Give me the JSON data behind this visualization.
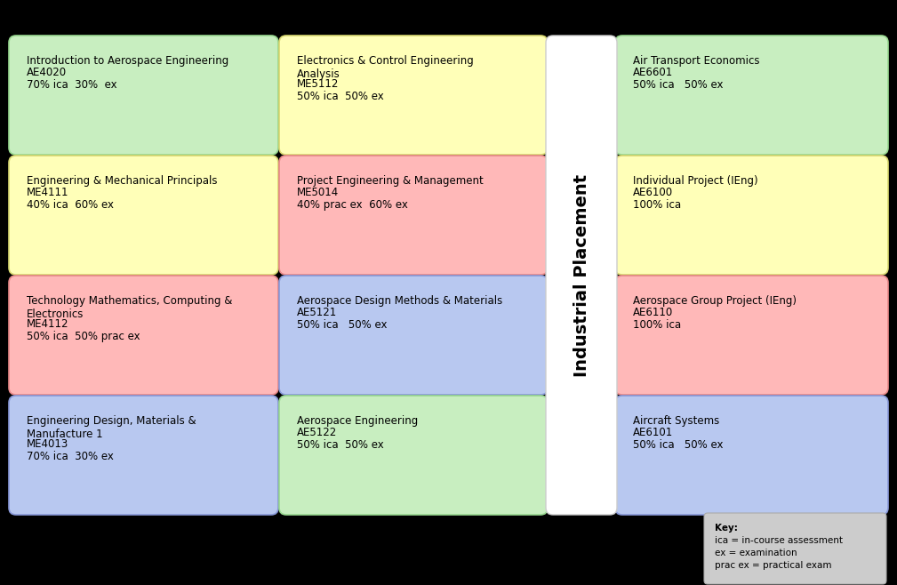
{
  "background_color": "#000000",
  "box_text_color": "#000000",
  "title_font_size": 8.5,
  "code_font_size": 8.5,
  "assess_font_size": 8.5,
  "industrial_placement_color": "#ffffff",
  "industrial_placement_border": "#cccccc",
  "key_box_color": "#cccccc",
  "key_box_border": "#aaaaaa",
  "industrial_text": "Industrial Placement",
  "industrial_font_size": 14,
  "key_lines": [
    "Key:",
    "ica = in-course assessment",
    "ex = examination",
    "prac ex = practical exam"
  ],
  "modules": [
    {
      "col": 0,
      "row": 0,
      "title": "Introduction to Aerospace Engineering",
      "code": "AE4020",
      "assess": "70% ica  30%  ex",
      "color": "#c8eec0",
      "border": "#98d890",
      "title_lines": 1
    },
    {
      "col": 0,
      "row": 1,
      "title": "Engineering & Mechanical Principals",
      "code": "ME4111",
      "assess": "40% ica  60% ex",
      "color": "#ffffb8",
      "border": "#d8d870",
      "title_lines": 1
    },
    {
      "col": 0,
      "row": 2,
      "title": "Technology Mathematics, Computing &\nElectronics",
      "code": "ME4112",
      "assess": "50% ica  50% prac ex",
      "color": "#ffb8b8",
      "border": "#e88888",
      "title_lines": 2
    },
    {
      "col": 0,
      "row": 3,
      "title": "Engineering Design, Materials &\nManufacture 1",
      "code": "ME4013",
      "assess": "70% ica  30% ex",
      "color": "#b8c8f0",
      "border": "#8898d8",
      "title_lines": 2
    },
    {
      "col": 1,
      "row": 0,
      "title": "Electronics & Control Engineering\nAnalysis",
      "code": "ME5112",
      "assess": "50% ica  50% ex",
      "color": "#ffffb8",
      "border": "#d8d870",
      "title_lines": 2
    },
    {
      "col": 1,
      "row": 1,
      "title": "Project Engineering & Management",
      "code": "ME5014",
      "assess": "40% prac ex  60% ex",
      "color": "#ffb8b8",
      "border": "#e88888",
      "title_lines": 1
    },
    {
      "col": 1,
      "row": 2,
      "title": "Aerospace Design Methods & Materials",
      "code": "AE5121",
      "assess": "50% ica   50% ex",
      "color": "#b8c8f0",
      "border": "#8898d8",
      "title_lines": 1
    },
    {
      "col": 1,
      "row": 3,
      "title": "Aerospace Engineering",
      "code": "AE5122",
      "assess": "50% ica  50% ex",
      "color": "#c8eec0",
      "border": "#98d890",
      "title_lines": 1
    },
    {
      "col": 3,
      "row": 0,
      "title": "Air Transport Economics",
      "code": "AE6601",
      "assess": "50% ica   50% ex",
      "color": "#c8eec0",
      "border": "#98d890",
      "title_lines": 1
    },
    {
      "col": 3,
      "row": 1,
      "title": "Individual Project (IEng)",
      "code": "AE6100",
      "assess": "100% ica",
      "color": "#ffffb8",
      "border": "#d8d870",
      "title_lines": 1
    },
    {
      "col": 3,
      "row": 2,
      "title": "Aerospace Group Project (IEng)",
      "code": "AE6110",
      "assess": "100% ica",
      "color": "#ffb8b8",
      "border": "#e88888",
      "title_lines": 1
    },
    {
      "col": 3,
      "row": 3,
      "title": "Aircraft Systems",
      "code": "AE6101",
      "assess": "50% ica   50% ex",
      "color": "#b8c8f0",
      "border": "#8898d8",
      "title_lines": 1
    }
  ]
}
